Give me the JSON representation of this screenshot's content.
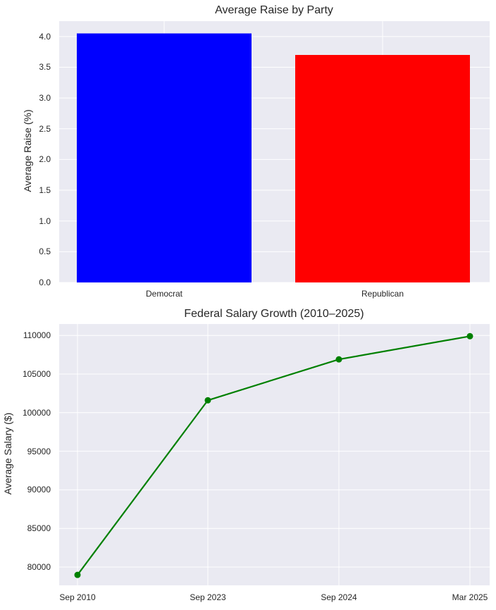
{
  "chart_data": [
    {
      "type": "bar",
      "title": "Average Raise by Party",
      "xlabel": "",
      "ylabel": "Average Raise (%)",
      "categories": [
        "Democrat",
        "Republican"
      ],
      "values": [
        4.05,
        3.7
      ],
      "colors": [
        "#0000ff",
        "#ff0000"
      ],
      "ylim": [
        0,
        4.25
      ],
      "yticks": [
        "0.0",
        "0.5",
        "1.0",
        "1.5",
        "2.0",
        "2.5",
        "3.0",
        "3.5",
        "4.0"
      ],
      "grid": true
    },
    {
      "type": "line",
      "title": "Federal Salary Growth (2010–2025)",
      "xlabel": "",
      "ylabel": "Average Salary ($)",
      "x": [
        "Sep 2010",
        "Sep 2023",
        "Sep 2024",
        "Mar 2025"
      ],
      "series": [
        {
          "name": "Average Salary",
          "values": [
            78980,
            101600,
            106900,
            109900
          ],
          "color": "#008000",
          "marker": "o"
        }
      ],
      "ylim": [
        77500,
        111500
      ],
      "yticks": [
        "80000",
        "85000",
        "90000",
        "95000",
        "100000",
        "105000",
        "110000"
      ],
      "grid": true
    }
  ]
}
